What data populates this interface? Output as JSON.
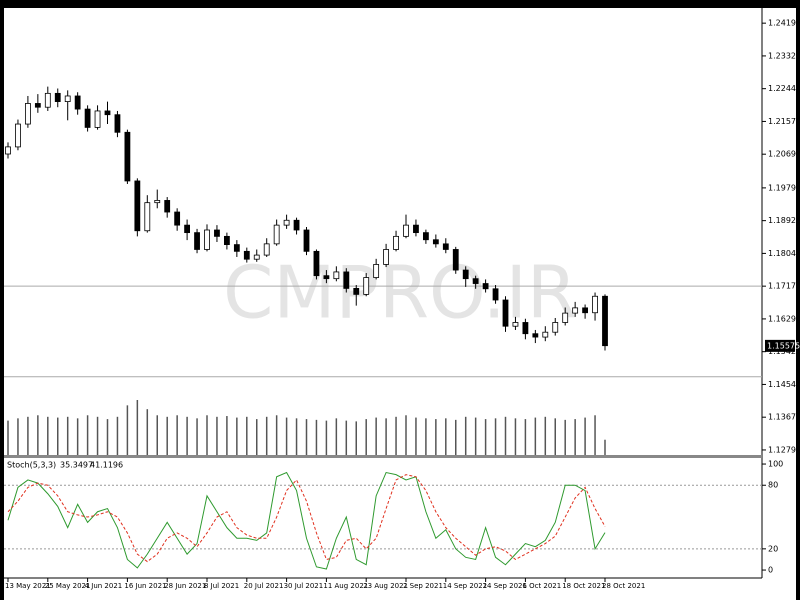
{
  "chart_data": [
    {
      "type": "candlestick",
      "categories": [
        "13 May 2021",
        null,
        null,
        null,
        "25 May 2021",
        null,
        null,
        null,
        "4 Jun 2021",
        null,
        null,
        null,
        "16 Jun 2021",
        null,
        null,
        null,
        "28 Jun 2021",
        null,
        null,
        null,
        "8 Jul 2021",
        null,
        null,
        null,
        "20 Jul 2021",
        null,
        null,
        null,
        "30 Jul 2021",
        null,
        null,
        null,
        "11 Aug 2021",
        null,
        null,
        null,
        "23 Aug 2021",
        null,
        null,
        null,
        "2 Sep 2021",
        null,
        null,
        null,
        "14 Sep 2021",
        null,
        null,
        null,
        "24 Sep 2021",
        null,
        null,
        null,
        "6 Oct 2021",
        null,
        null,
        null,
        "18 Oct 2021",
        null,
        null,
        null,
        "28 Oct 2021"
      ],
      "open": [
        1.207,
        1.2089,
        1.215,
        1.2205,
        1.2195,
        1.2232,
        1.221,
        1.2225,
        1.219,
        1.2141,
        1.2185,
        1.2175,
        1.2128,
        1.1998,
        1.1865,
        1.194,
        1.1946,
        1.1915,
        1.188,
        1.186,
        1.1815,
        1.1867,
        1.185,
        1.1828,
        1.181,
        1.1789,
        1.18,
        1.183,
        1.188,
        1.1893,
        1.1867,
        1.181,
        1.1745,
        1.1737,
        1.1755,
        1.1711,
        1.1695,
        1.174,
        1.1775,
        1.1815,
        1.185,
        1.188,
        1.186,
        1.1841,
        1.183,
        1.1815,
        1.176,
        1.1737,
        1.1724,
        1.171,
        1.168,
        1.161,
        1.162,
        1.159,
        1.1581,
        1.1594,
        1.162,
        1.1645,
        1.1659,
        1.1646,
        1.169
      ],
      "high": [
        1.2101,
        1.2162,
        1.2225,
        1.223,
        1.225,
        1.2245,
        1.224,
        1.2235,
        1.22,
        1.22,
        1.221,
        1.2185,
        1.2135,
        1.2005,
        1.196,
        1.1975,
        1.1955,
        1.1925,
        1.1895,
        1.187,
        1.1882,
        1.188,
        1.186,
        1.184,
        1.182,
        1.1815,
        1.1845,
        1.1895,
        1.1908,
        1.19,
        1.1875,
        1.1815,
        1.176,
        1.177,
        1.1765,
        1.172,
        1.1752,
        1.179,
        1.183,
        1.1865,
        1.1908,
        1.1895,
        1.1868,
        1.1855,
        1.1845,
        1.1822,
        1.177,
        1.1745,
        1.1735,
        1.172,
        1.169,
        1.1635,
        1.163,
        1.16,
        1.161,
        1.1632,
        1.166,
        1.1675,
        1.1668,
        1.17,
        1.1695
      ],
      "low": [
        1.2058,
        1.208,
        1.214,
        1.218,
        1.2185,
        1.2195,
        1.216,
        1.2175,
        1.213,
        1.2135,
        1.215,
        1.2115,
        1.199,
        1.185,
        1.186,
        1.1925,
        1.19,
        1.1865,
        1.184,
        1.1805,
        1.181,
        1.1835,
        1.1815,
        1.1795,
        1.178,
        1.1782,
        1.1795,
        1.1825,
        1.187,
        1.1855,
        1.18,
        1.1735,
        1.1725,
        1.173,
        1.17,
        1.1665,
        1.169,
        1.1735,
        1.1768,
        1.181,
        1.1845,
        1.185,
        1.183,
        1.182,
        1.1805,
        1.175,
        1.1715,
        1.171,
        1.17,
        1.167,
        1.1595,
        1.16,
        1.1575,
        1.1565,
        1.157,
        1.1585,
        1.1612,
        1.1635,
        1.163,
        1.1625,
        1.1545
      ],
      "close": [
        1.2089,
        1.215,
        1.2205,
        1.2195,
        1.2232,
        1.221,
        1.2225,
        1.219,
        1.2141,
        1.2185,
        1.2175,
        1.2128,
        1.1998,
        1.1865,
        1.194,
        1.1946,
        1.1915,
        1.188,
        1.186,
        1.1815,
        1.1867,
        1.185,
        1.1828,
        1.181,
        1.1789,
        1.18,
        1.183,
        1.188,
        1.1893,
        1.1867,
        1.181,
        1.1745,
        1.1737,
        1.1755,
        1.1711,
        1.1695,
        1.174,
        1.1775,
        1.1815,
        1.185,
        1.188,
        1.186,
        1.1841,
        1.183,
        1.1815,
        1.176,
        1.1737,
        1.1724,
        1.171,
        1.168,
        1.161,
        1.162,
        1.159,
        1.1581,
        1.1594,
        1.162,
        1.1645,
        1.1659,
        1.1646,
        1.169,
        1.1558
      ],
      "volume": [
        45,
        48,
        50,
        52,
        50,
        49,
        50,
        48,
        52,
        50,
        47,
        50,
        65,
        72,
        60,
        52,
        50,
        52,
        50,
        48,
        52,
        50,
        51,
        49,
        50,
        47,
        50,
        52,
        49,
        48,
        47,
        46,
        45,
        48,
        45,
        44,
        47,
        49,
        48,
        50,
        52,
        49,
        48,
        47,
        48,
        46,
        50,
        49,
        47,
        48,
        50,
        48,
        47,
        49,
        50,
        48,
        46,
        47,
        49,
        52,
        20
      ],
      "ylim": [
        1.1266,
        1.246
      ],
      "yticks": [
        1.24195,
        {
          "value": 1.2332,
          "label": "1.23320"
        },
        1.22445,
        {
          "value": 1.2157,
          "label": "1.21570"
        },
        1.20695,
        1.19795,
        {
          "value": 1.1892,
          "label": "1.18920"
        },
        1.18045,
        {
          "value": 1.1717,
          "label": "1.17170"
        },
        1.16295,
        {
          "value": 1.1542,
          "label": "1.15420"
        },
        1.14545,
        {
          "value": 1.1367,
          "label": "1.13670"
        },
        1.12795
      ],
      "current_price": 1.15575,
      "horizontal_lines": [
        1.1717,
        1.1475
      ],
      "watermark": "CMPRO.IR"
    },
    {
      "type": "line",
      "title": "Stoch(5,3,3)",
      "series": [
        {
          "color": "#2f9a2f",
          "values": [
            47,
            78,
            85,
            82,
            72,
            60,
            40,
            62,
            45,
            55,
            58,
            40,
            10,
            2,
            15,
            30,
            45,
            30,
            15,
            25,
            70,
            55,
            40,
            30,
            30,
            28,
            35,
            88,
            92,
            75,
            30,
            3,
            1,
            30,
            50,
            10,
            5,
            70,
            92,
            90,
            85,
            88,
            55,
            30,
            38,
            20,
            12,
            10,
            40,
            12,
            5,
            15,
            25,
            22,
            28,
            45,
            80,
            80,
            75,
            20,
            35.3497
          ]
        },
        {
          "color": "#e0301e",
          "dashed": true,
          "values": [
            55,
            65,
            78,
            82,
            80,
            70,
            55,
            52,
            50,
            52,
            55,
            50,
            35,
            15,
            8,
            15,
            30,
            35,
            30,
            22,
            35,
            50,
            55,
            40,
            33,
            30,
            30,
            50,
            75,
            85,
            65,
            35,
            10,
            12,
            28,
            30,
            20,
            30,
            58,
            85,
            90,
            88,
            75,
            55,
            40,
            30,
            22,
            14,
            20,
            22,
            18,
            10,
            15,
            20,
            25,
            32,
            50,
            68,
            78,
            58,
            41.1196
          ]
        }
      ],
      "ylim": [
        -7.5,
        105.7
      ],
      "yticks": [
        100,
        80,
        20,
        0
      ],
      "levels": [
        80,
        20
      ]
    }
  ]
}
